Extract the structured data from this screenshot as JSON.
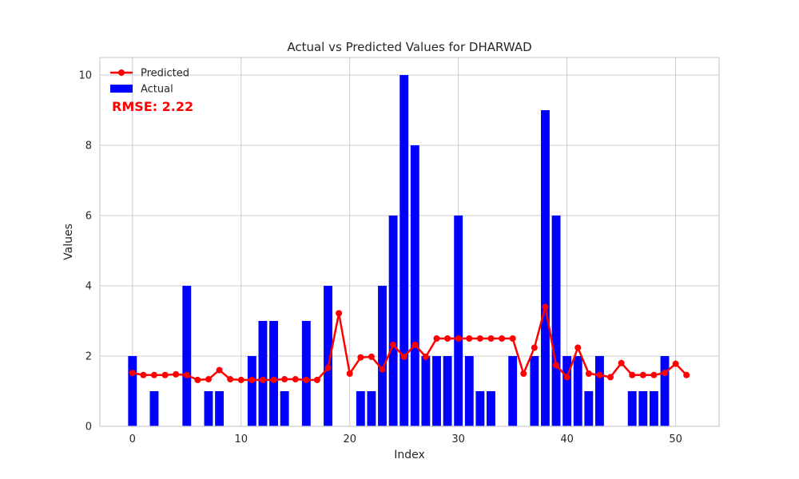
{
  "chart_data": {
    "type": "bar",
    "title": "Actual vs Predicted Values for DHARWAD",
    "xlabel": "Index",
    "ylabel": "Values",
    "xlim": [
      -3,
      54
    ],
    "ylim": [
      0,
      10.5
    ],
    "xticks": [
      0,
      10,
      20,
      30,
      40,
      50
    ],
    "yticks": [
      0,
      2,
      4,
      6,
      8,
      10
    ],
    "grid": true,
    "legend_position": "top-left",
    "annotation": "RMSE: 2.22",
    "colors": {
      "actual": "#0000ff",
      "predicted": "#ff0000",
      "grid": "#cccccc",
      "frame": "#cccccc"
    },
    "series": [
      {
        "name": "Actual",
        "kind": "bar",
        "x": [
          0,
          1,
          2,
          3,
          4,
          5,
          6,
          7,
          8,
          9,
          10,
          11,
          12,
          13,
          14,
          15,
          16,
          17,
          18,
          19,
          20,
          21,
          22,
          23,
          24,
          25,
          26,
          27,
          28,
          29,
          30,
          31,
          32,
          33,
          34,
          35,
          36,
          37,
          38,
          39,
          40,
          41,
          42,
          43,
          44,
          45,
          46,
          47,
          48,
          49,
          50,
          51
        ],
        "values": [
          2,
          0,
          1,
          0,
          0,
          4,
          0,
          1,
          1,
          0,
          0,
          2,
          3,
          3,
          1,
          0,
          3,
          0,
          4,
          0,
          0,
          1,
          1,
          4,
          6,
          10,
          8,
          2,
          2,
          2,
          6,
          2,
          1,
          1,
          0,
          2,
          0,
          2,
          9,
          6,
          2,
          2,
          1,
          2,
          0,
          0,
          1,
          1,
          1,
          2,
          0,
          0
        ]
      },
      {
        "name": "Predicted",
        "kind": "line",
        "x": [
          0,
          1,
          2,
          3,
          4,
          5,
          6,
          7,
          8,
          9,
          10,
          11,
          12,
          13,
          14,
          15,
          16,
          17,
          18,
          19,
          20,
          21,
          22,
          23,
          24,
          25,
          26,
          27,
          28,
          29,
          30,
          31,
          32,
          33,
          34,
          35,
          36,
          37,
          38,
          39,
          40,
          41,
          42,
          43,
          44,
          45,
          46,
          47,
          48,
          49,
          50,
          51
        ],
        "values": [
          1.52,
          1.46,
          1.46,
          1.46,
          1.48,
          1.46,
          1.32,
          1.34,
          1.6,
          1.34,
          1.32,
          1.32,
          1.32,
          1.32,
          1.34,
          1.34,
          1.32,
          1.32,
          1.66,
          3.22,
          1.5,
          1.96,
          1.98,
          1.62,
          2.32,
          1.98,
          2.32,
          1.98,
          2.5,
          2.5,
          2.5,
          2.5,
          2.5,
          2.5,
          2.5,
          2.5,
          1.5,
          2.24,
          3.4,
          1.74,
          1.4,
          2.24,
          1.5,
          1.46,
          1.4,
          1.8,
          1.46,
          1.46,
          1.46,
          1.52,
          1.78,
          1.46
        ]
      }
    ]
  }
}
